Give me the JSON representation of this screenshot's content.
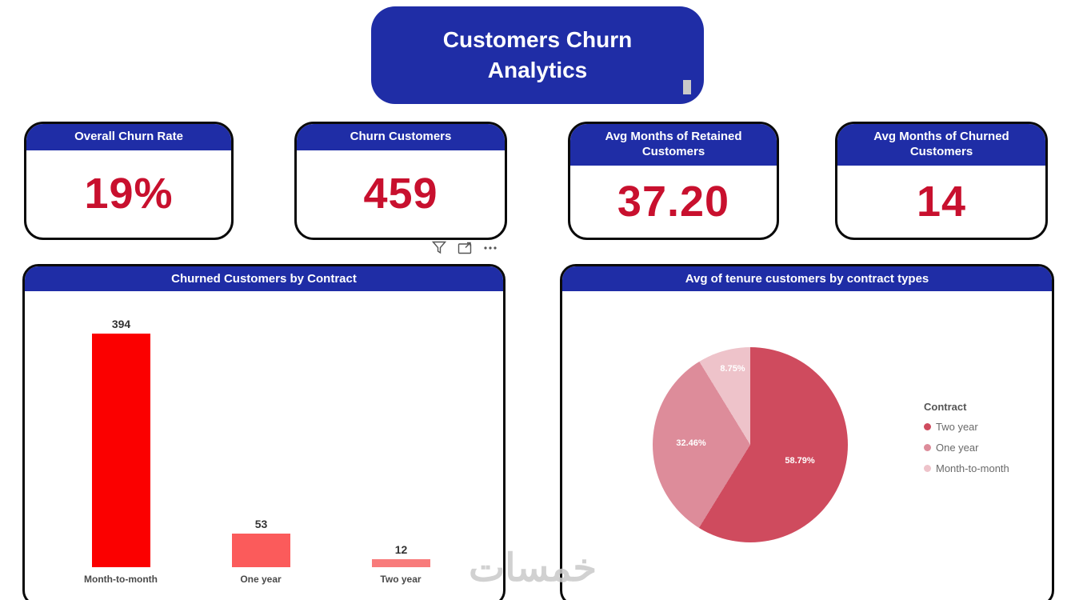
{
  "colors": {
    "brand_blue": "#1F2DA6",
    "value_red": "#C8102E"
  },
  "title_banner": {
    "text": "Customers Churn Analytics"
  },
  "kpi_cards": [
    {
      "label": "Overall Churn Rate",
      "value": "19%"
    },
    {
      "label": "Churn Customers",
      "value": "459"
    },
    {
      "label": "Avg Months of Retained Customers",
      "value": "37.20"
    },
    {
      "label": "Avg Months of Churned Customers",
      "value": "14"
    }
  ],
  "chart_data": [
    {
      "type": "bar",
      "title": "Churned Customers by Contract",
      "categories": [
        "Month-to-month",
        "One year",
        "Two year"
      ],
      "values": [
        394,
        53,
        12
      ],
      "bar_colors": [
        "#fb0000",
        "#fb5b5b",
        "#f87b7b"
      ],
      "xlabel": "",
      "ylabel": "",
      "ylim": [
        0,
        400
      ],
      "grid": false,
      "data_labels": true
    },
    {
      "type": "pie",
      "title": "Avg of tenure customers by contract types",
      "legend_title": "Contract",
      "legend_position": "right",
      "labels": [
        "Two year",
        "One year",
        "Month-to-month"
      ],
      "values_pct": [
        58.79,
        32.46,
        8.75
      ],
      "slice_labels": [
        "58.79%",
        "32.46%",
        "8.75%"
      ],
      "slice_colors": [
        "#cf4b5e",
        "#dd8c9a",
        "#eec3ca"
      ]
    }
  ],
  "watermark": "خمسات"
}
